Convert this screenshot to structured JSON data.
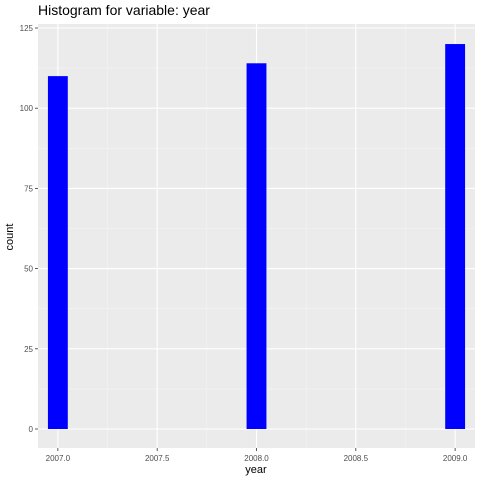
{
  "chart_data": {
    "type": "bar",
    "title": "Histogram for variable: year",
    "xlabel": "year",
    "ylabel": "count",
    "x": [
      2007.0,
      2008.0,
      2009.0
    ],
    "values": [
      110,
      114,
      120
    ],
    "xlim": [
      2006.9,
      2009.1
    ],
    "ylim": [
      0,
      125
    ],
    "bin_width": 0.1,
    "x_ticks": [
      "2007.0",
      "2007.5",
      "2008.0",
      "2008.5",
      "2009.0"
    ],
    "x_tick_values": [
      2007.0,
      2007.5,
      2008.0,
      2008.5,
      2009.0
    ],
    "y_ticks": [
      "0",
      "25",
      "50",
      "75",
      "100",
      "125"
    ],
    "y_tick_values": [
      0,
      25,
      50,
      75,
      100,
      125
    ],
    "grid": true,
    "colors": {
      "bar": "#0000ff",
      "panel": "#ebebeb",
      "grid_major": "#ffffff",
      "grid_minor": "#f5f5f5",
      "tick_text": "#4d4d4d"
    }
  }
}
